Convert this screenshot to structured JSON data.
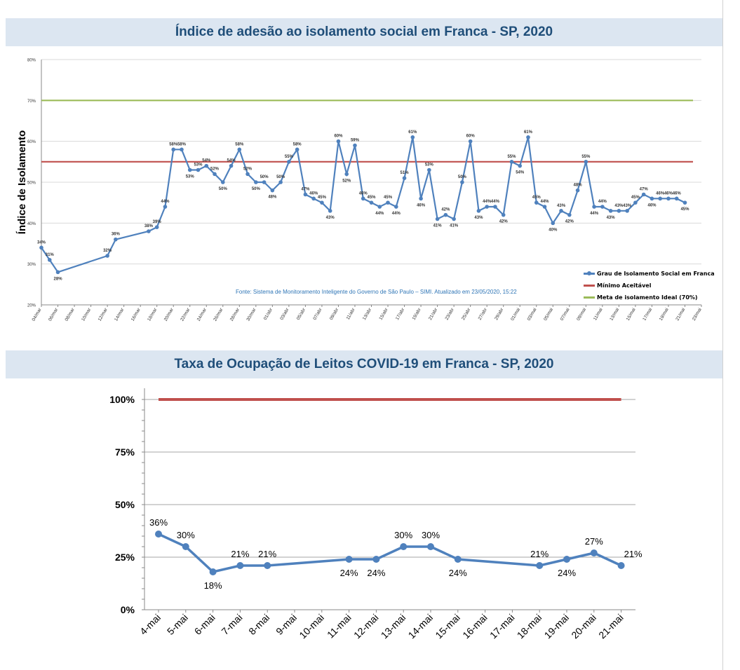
{
  "chart_data": [
    {
      "type": "line",
      "title": "Índice de adesão ao isolamento social em Franca - SP, 2020",
      "ylabel": "Índice de Isolamento",
      "ylim": [
        20,
        80
      ],
      "y_ticks": [
        "20%",
        "30%",
        "40%",
        "50%",
        "60%",
        "70%",
        "80%"
      ],
      "x_tick_labels": [
        "04/mar",
        "06/mar",
        "08/mar",
        "10/mar",
        "12/mar",
        "14/mar",
        "16/mar",
        "18/mar",
        "20/mar",
        "22/mar",
        "24/mar",
        "26/mar",
        "28/mar",
        "30/mar",
        "01/abr",
        "03/abr",
        "05/abr",
        "07/abr",
        "09/abr",
        "11/abr",
        "13/abr",
        "15/abr",
        "17/abr",
        "19/abr",
        "21/abr",
        "23/abr",
        "25/abr",
        "27/abr",
        "29/abr",
        "01/mai",
        "03/mai",
        "05/mai",
        "07/mai",
        "09/mai",
        "11/mai",
        "13/mai",
        "15/mai",
        "17/mai",
        "19/mai",
        "21/mai",
        "23/mai"
      ],
      "series": [
        {
          "name": "Grau de Isolamento Social em Franca",
          "color": "#4f81bd",
          "points": [
            [
              0,
              34
            ],
            [
              1,
              31
            ],
            [
              2,
              28
            ],
            [
              8,
              32
            ],
            [
              9,
              36
            ],
            [
              13,
              38
            ],
            [
              14,
              39
            ],
            [
              15,
              44
            ],
            [
              16,
              58
            ],
            [
              17,
              58
            ],
            [
              18,
              53
            ],
            [
              19,
              53
            ],
            [
              20,
              54
            ],
            [
              21,
              52
            ],
            [
              22,
              50
            ],
            [
              23,
              54
            ],
            [
              24,
              58
            ],
            [
              25,
              52
            ],
            [
              26,
              50
            ],
            [
              27,
              50
            ],
            [
              28,
              48
            ],
            [
              29,
              50
            ],
            [
              30,
              55
            ],
            [
              31,
              58
            ],
            [
              32,
              47
            ],
            [
              33,
              46
            ],
            [
              34,
              45
            ],
            [
              35,
              43
            ],
            [
              36,
              60
            ],
            [
              37,
              52
            ],
            [
              38,
              59
            ],
            [
              39,
              46
            ],
            [
              40,
              45
            ],
            [
              41,
              44
            ],
            [
              42,
              45
            ],
            [
              43,
              44
            ],
            [
              44,
              51
            ],
            [
              45,
              61
            ],
            [
              46,
              46
            ],
            [
              47,
              53
            ],
            [
              48,
              41
            ],
            [
              49,
              42
            ],
            [
              50,
              41
            ],
            [
              51,
              50
            ],
            [
              52,
              60
            ],
            [
              53,
              43
            ],
            [
              54,
              44
            ],
            [
              55,
              44
            ],
            [
              56,
              42
            ],
            [
              57,
              55
            ],
            [
              58,
              54
            ],
            [
              59,
              61
            ],
            [
              60,
              45
            ],
            [
              61,
              44
            ],
            [
              62,
              40
            ],
            [
              63,
              43
            ],
            [
              64,
              42
            ],
            [
              65,
              48
            ],
            [
              66,
              55
            ],
            [
              67,
              44
            ],
            [
              68,
              44
            ],
            [
              69,
              43
            ],
            [
              70,
              43
            ],
            [
              71,
              43
            ],
            [
              72,
              45
            ],
            [
              73,
              47
            ],
            [
              74,
              46
            ],
            [
              75,
              46
            ],
            [
              76,
              46
            ],
            [
              77,
              46
            ],
            [
              78,
              45
            ]
          ],
          "data_labels": [
            "34%",
            "31%",
            "28%",
            "32%",
            "36%",
            "38%",
            "39%",
            "44%",
            "58%",
            "58%",
            "53%",
            "53%",
            "54%",
            "52%",
            "50%",
            "54%",
            "58%",
            "52%",
            "50%",
            "50%",
            "48%",
            "50%",
            "55%",
            "58%",
            "47%",
            "46%",
            "45%",
            "43%",
            "60%",
            "52%",
            "59%",
            "46%",
            "45%",
            "44%",
            "45%",
            "44%",
            "51%",
            "61%",
            "46%",
            "53%",
            "41%",
            "42%",
            "41%",
            "50%",
            "60%",
            "43%",
            "44%",
            "44%",
            "42%",
            "55%",
            "54%",
            "61%",
            "45%",
            "44%",
            "40%",
            "43%",
            "42%",
            "48%",
            "55%",
            "44%",
            "44%",
            "43%",
            "43%",
            "43%",
            "45%",
            "47%",
            "46%",
            "46%",
            "46%",
            "46%",
            "45%"
          ]
        },
        {
          "name": "Mínimo Aceitável",
          "color": "#c0504d",
          "value": 55
        },
        {
          "name": "Meta de isolamento Ideal (70%)",
          "color": "#9bbb59",
          "value": 70
        }
      ],
      "annotation": "Fonte: Sistema de Monitoramento Inteligente do Governo de São Paulo – SIMI. Atualizado em 23/05/2020, 15:22",
      "grid": true,
      "legend_position": "bottom-right"
    },
    {
      "type": "line",
      "title": "Taxa de Ocupação de Leitos COVID-19 em Franca - SP, 2020",
      "ylim": [
        0,
        100
      ],
      "y_ticks": [
        "0%",
        "25%",
        "50%",
        "75%",
        "100%"
      ],
      "categories": [
        "4-mai",
        "5-mai",
        "6-mai",
        "7-mai",
        "8-mai",
        "9-mai",
        "10-mai",
        "11-mai",
        "12-mai",
        "13-mai",
        "14-mai",
        "15-mai",
        "16-mai",
        "17-mai",
        "18-mai",
        "19-mai",
        "20-mai",
        "21-mai"
      ],
      "series": [
        {
          "color": "#4f81bd",
          "points": [
            [
              0,
              36
            ],
            [
              1,
              30
            ],
            [
              2,
              18
            ],
            [
              3,
              21
            ],
            [
              4,
              21
            ],
            [
              7,
              24
            ],
            [
              8,
              24
            ],
            [
              9,
              30
            ],
            [
              10,
              30
            ],
            [
              11,
              24
            ],
            [
              14,
              21
            ],
            [
              15,
              24
            ],
            [
              16,
              27
            ],
            [
              17,
              21
            ]
          ],
          "data_labels": [
            "36%",
            "30%",
            "18%",
            "21%",
            "21%",
            "24%",
            "24%",
            "30%",
            "30%",
            "24%",
            "21%",
            "24%",
            "27%",
            "21%"
          ]
        },
        {
          "color": "#c0504d",
          "value": 100
        }
      ],
      "grid": true
    }
  ]
}
